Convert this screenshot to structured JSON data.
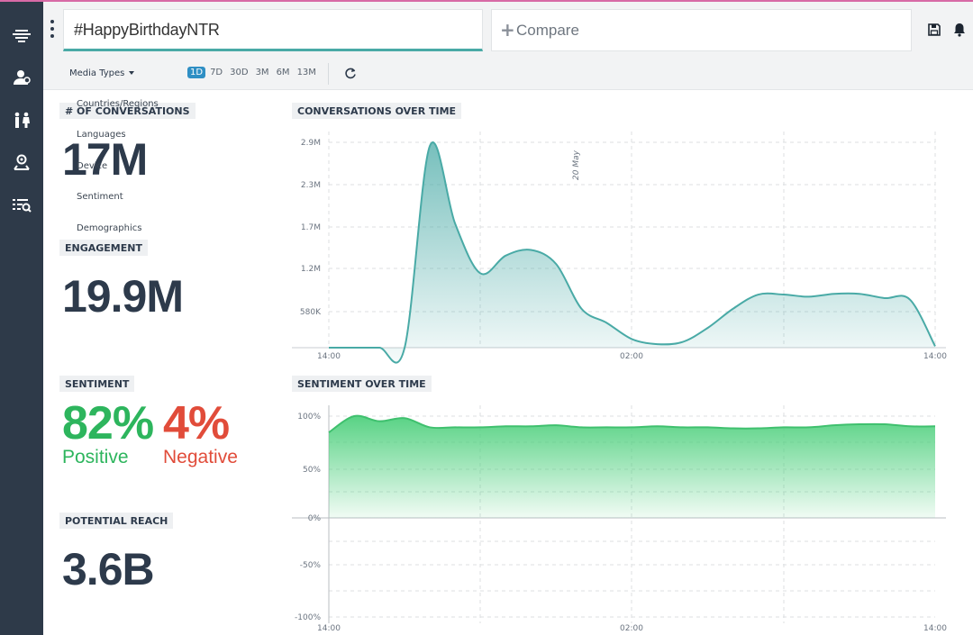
{
  "header": {
    "query": "#HappyBirthdayNTR",
    "compare_label": "Compare"
  },
  "sidebar": {
    "items": [
      {
        "icon": "dashboard-icon"
      },
      {
        "icon": "users-icon"
      },
      {
        "icon": "demographics-icon"
      },
      {
        "icon": "location-icon"
      },
      {
        "icon": "search-list-icon"
      }
    ]
  },
  "toolbar": {
    "media_types_label": "Media Types",
    "ranges": [
      "1D",
      "7D",
      "30D",
      "3M",
      "6M",
      "13M"
    ],
    "active_range": "1D"
  },
  "dropdown": {
    "items": [
      "Countries/Regions",
      "Languages",
      "Device",
      "Sentiment",
      "Demographics"
    ]
  },
  "metrics": {
    "conversations_label": "# OF CONVERSATIONS",
    "conversations_value": "17M",
    "engagement_label": "ENGAGEMENT",
    "engagement_value": "19.9M",
    "sentiment_label": "SENTIMENT",
    "positive_value": "82%",
    "positive_label": "Positive",
    "negative_value": "4%",
    "negative_label": "Negative",
    "reach_label": "POTENTIAL REACH",
    "reach_value": "3.6B"
  },
  "colors": {
    "teal": "#49aaa6",
    "green": "#4fd07e",
    "positive": "#2db55d",
    "negative": "#e14c3a",
    "sidebar": "#2e3a49"
  },
  "chart_data": [
    {
      "type": "area",
      "title": "CONVERSATIONS OVER TIME",
      "annotation": "20 May",
      "y_ticks": [
        "580K",
        "1.2M",
        "1.7M",
        "2.3M",
        "2.9M"
      ],
      "x_ticks": [
        "14:00",
        "02:00",
        "14:00"
      ],
      "x": [
        0,
        1,
        2,
        3,
        4,
        5,
        6,
        7,
        8,
        9,
        10,
        11,
        12,
        13,
        14,
        15,
        16,
        17,
        18,
        19,
        20,
        21,
        22,
        23,
        24
      ],
      "values": [
        0,
        0,
        0,
        0,
        2.85,
        1.75,
        1.05,
        1.3,
        1.38,
        1.18,
        0.55,
        0.35,
        0.12,
        0.05,
        0.08,
        0.28,
        0.55,
        0.75,
        0.75,
        0.72,
        0.76,
        0.76,
        0.7,
        0.68,
        0.02
      ],
      "grid": true,
      "color": "#49aaa6"
    },
    {
      "type": "area",
      "title": "SENTIMENT OVER TIME",
      "y_ticks": [
        "100%",
        "50%",
        "0%",
        "-50%",
        "-100%"
      ],
      "x_ticks": [
        "14:00",
        "02:00",
        "14:00"
      ],
      "x": [
        0,
        1,
        2,
        3,
        4,
        5,
        6,
        7,
        8,
        9,
        10,
        11,
        12,
        13,
        14,
        15,
        16,
        17,
        18,
        19,
        20,
        21,
        22,
        23,
        24
      ],
      "values": [
        84,
        100,
        95,
        98,
        89,
        89,
        89,
        90,
        90,
        91,
        89,
        89,
        89,
        90,
        89,
        89,
        88,
        88,
        89,
        89,
        91,
        92,
        92,
        90,
        90
      ],
      "ylim": [
        -100,
        100
      ],
      "grid": true,
      "color": "#4fd07e"
    }
  ]
}
